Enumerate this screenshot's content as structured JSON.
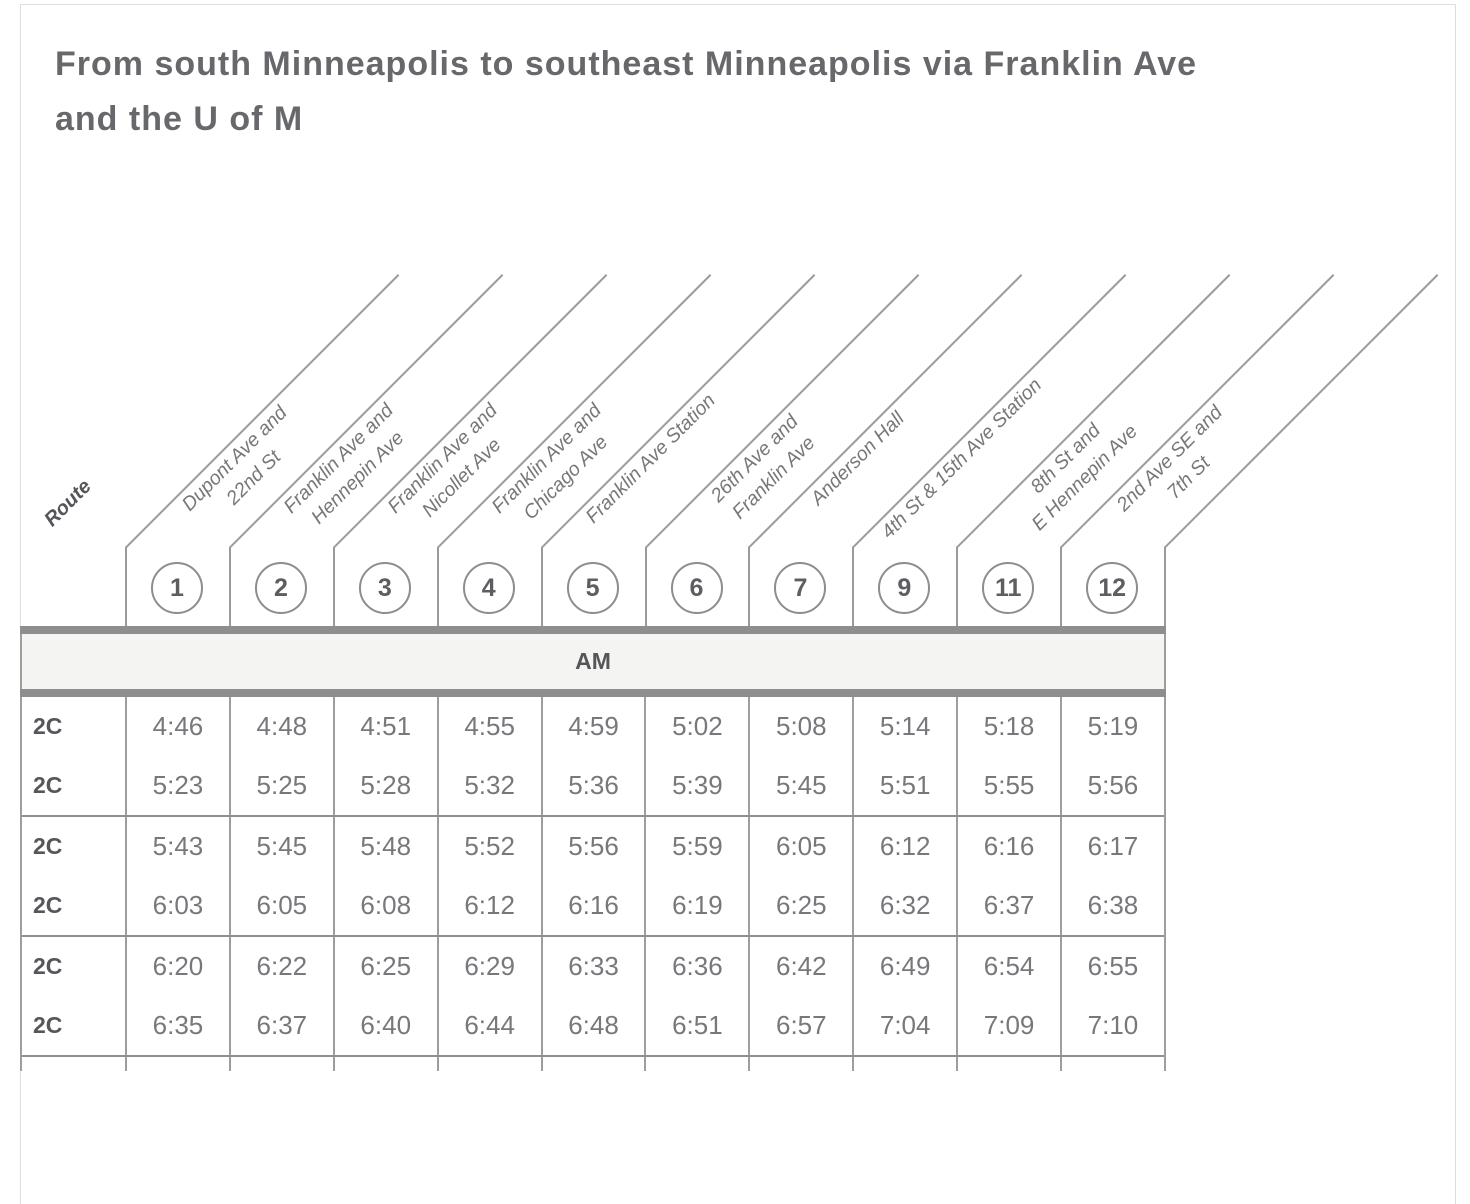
{
  "title": "From south Minneapolis to southeast Minneapolis via Franklin Ave and the U of M",
  "header": {
    "route_label": "Route",
    "stops": [
      {
        "number": "1",
        "line1": "Dupont Ave and",
        "line2": "22nd St"
      },
      {
        "number": "2",
        "line1": "Franklin Ave and",
        "line2": "Hennepin Ave"
      },
      {
        "number": "3",
        "line1": "Franklin Ave and",
        "line2": "Nicollet Ave"
      },
      {
        "number": "4",
        "line1": "Franklin Ave and",
        "line2": "Chicago Ave"
      },
      {
        "number": "5",
        "line1": "Franklin Ave Station",
        "line2": ""
      },
      {
        "number": "6",
        "line1": "26th Ave and",
        "line2": "Franklin Ave"
      },
      {
        "number": "7",
        "line1": "Anderson Hall",
        "line2": ""
      },
      {
        "number": "9",
        "line1": "4th St & 15th Ave Station",
        "line2": ""
      },
      {
        "number": "11",
        "line1": "8th St and",
        "line2": "E Hennepin Ave"
      },
      {
        "number": "12",
        "line1": "2nd Ave SE and",
        "line2": "7th St"
      }
    ]
  },
  "period_label": "AM",
  "schedule": {
    "groups": [
      {
        "rows": [
          {
            "route": "2C",
            "times": [
              "4:46",
              "4:48",
              "4:51",
              "4:55",
              "4:59",
              "5:02",
              "5:08",
              "5:14",
              "5:18",
              "5:19"
            ]
          },
          {
            "route": "2C",
            "times": [
              "5:23",
              "5:25",
              "5:28",
              "5:32",
              "5:36",
              "5:39",
              "5:45",
              "5:51",
              "5:55",
              "5:56"
            ]
          }
        ]
      },
      {
        "rows": [
          {
            "route": "2C",
            "times": [
              "5:43",
              "5:45",
              "5:48",
              "5:52",
              "5:56",
              "5:59",
              "6:05",
              "6:12",
              "6:16",
              "6:17"
            ]
          },
          {
            "route": "2C",
            "times": [
              "6:03",
              "6:05",
              "6:08",
              "6:12",
              "6:16",
              "6:19",
              "6:25",
              "6:32",
              "6:37",
              "6:38"
            ]
          }
        ]
      },
      {
        "rows": [
          {
            "route": "2C",
            "times": [
              "6:20",
              "6:22",
              "6:25",
              "6:29",
              "6:33",
              "6:36",
              "6:42",
              "6:49",
              "6:54",
              "6:55"
            ]
          },
          {
            "route": "2C",
            "times": [
              "6:35",
              "6:37",
              "6:40",
              "6:44",
              "6:48",
              "6:51",
              "6:57",
              "7:04",
              "7:09",
              "7:10"
            ]
          }
        ]
      }
    ]
  },
  "colors": {
    "title_text": "#67686b",
    "thick_bar": "#8e8e8e",
    "period_band_bg": "#f4f4f3",
    "grid_line": "#9e9e9e",
    "group_border": "#8f8f8f",
    "time_text": "#77787b",
    "route_text": "#55565a",
    "stop_label_text": "#76777a"
  }
}
